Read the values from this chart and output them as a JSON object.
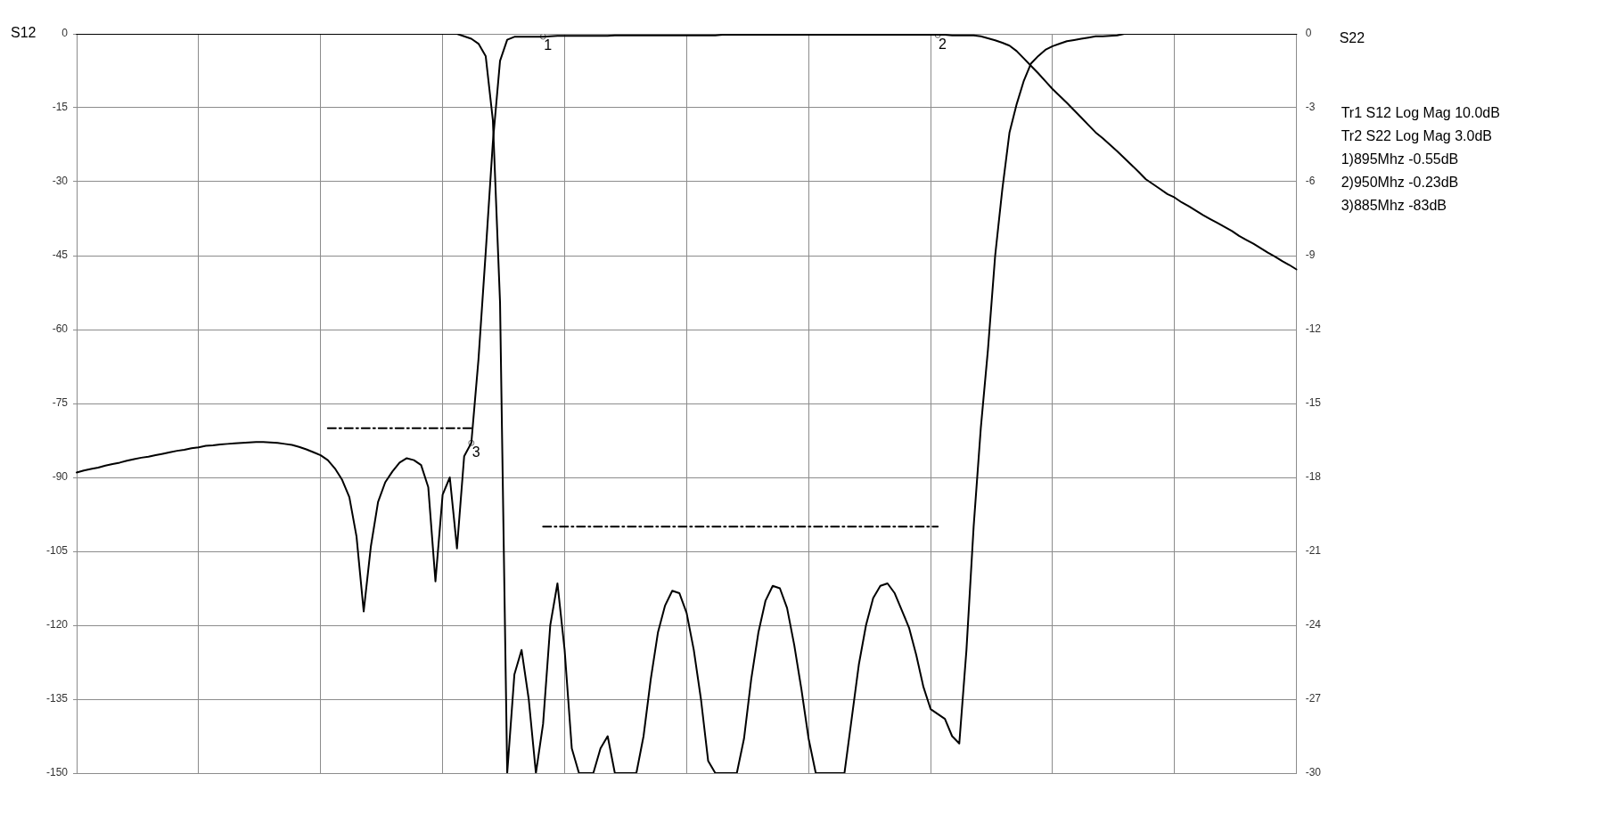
{
  "chart_data": {
    "type": "line",
    "ylabel": "S12",
    "y2label": "S22",
    "categories": [
      null,
      null,
      null,
      null,
      null,
      null,
      null,
      null,
      null,
      null,
      null,
      null,
      null,
      null,
      null,
      null,
      null,
      null,
      null,
      null,
      null,
      null,
      null,
      null,
      null,
      null,
      null,
      null,
      null,
      null,
      null,
      null,
      null,
      null,
      null,
      null,
      null,
      null,
      null,
      null,
      null,
      null,
      null,
      null,
      null,
      null,
      null,
      null,
      null,
      null,
      null,
      null,
      null,
      null,
      null,
      null,
      null,
      null,
      null,
      null,
      null,
      null,
      null,
      null,
      null,
      null,
      null,
      null,
      null,
      null,
      null,
      null,
      null,
      null,
      null,
      null,
      null,
      null,
      null,
      null,
      null,
      null,
      null,
      null,
      null,
      null,
      null,
      null,
      null,
      null,
      null,
      null,
      null,
      null,
      null,
      null,
      null,
      null,
      null,
      null,
      null,
      null,
      null,
      null,
      null,
      null,
      null,
      null,
      null,
      null,
      null,
      null,
      null,
      null,
      null,
      null,
      null,
      null,
      null,
      null,
      null,
      null,
      null,
      null,
      null,
      null,
      null,
      null,
      null,
      null,
      null,
      null,
      null,
      null,
      null,
      null,
      null,
      null,
      null,
      null,
      null,
      null,
      null,
      null,
      null,
      null,
      null,
      null,
      null,
      null,
      null,
      null,
      null,
      null,
      null,
      null,
      null,
      null,
      null,
      null,
      null,
      null,
      null,
      null,
      null,
      null,
      null,
      null,
      null,
      null,
      null
    ],
    "ylim": [
      -150,
      0
    ],
    "yticks": [
      -150,
      -135,
      -120,
      -105,
      -90,
      -75,
      -60,
      -45,
      -30,
      -15,
      0
    ],
    "y2lim": [
      -30,
      0
    ],
    "y2ticks": [
      -30,
      -27,
      -24,
      -21,
      -18,
      -15,
      -12,
      -9,
      -6,
      -3,
      0
    ],
    "tick_labels": "y",
    "grid": true,
    "legend": false,
    "marker": "none",
    "line_style": "solid",
    "series": [
      {
        "color": "#000000",
        "values": [
          -89,
          -88.6,
          -88.3,
          -88,
          -87.6,
          -87.3,
          -87,
          -86.6,
          -86.3,
          -86,
          -85.8,
          -85.5,
          -85.2,
          -84.9,
          -84.6,
          -84.4,
          -84.1,
          -83.9,
          -83.6,
          -83.5,
          -83.3,
          -83.2,
          -83.1,
          -83,
          -82.9,
          -82.8,
          -82.8,
          -82.9,
          -83,
          -83.2,
          -83.4,
          -83.8,
          -84.3,
          -84.9,
          -85.5,
          -86.5,
          -88.2,
          -90.5,
          -94,
          -102,
          -117.2,
          -104,
          -95,
          -91,
          -88.8,
          -87,
          -86.1,
          -86.5,
          -87.5,
          -92,
          -111.1,
          -93.5,
          -90,
          -104.4,
          -85.7,
          -83,
          -66,
          -44.4,
          -22,
          -5.5,
          -1.2,
          -0.6,
          -0.6,
          -0.6,
          -0.6,
          -0.6,
          -0.5,
          -0.4,
          -0.4,
          -0.4,
          -0.4,
          -0.4,
          -0.4,
          -0.4,
          -0.4,
          -0.3,
          -0.3,
          -0.3,
          -0.3,
          -0.3,
          -0.3,
          -0.3,
          -0.3,
          -0.3,
          -0.3,
          -0.3,
          -0.3,
          -0.3,
          -0.3,
          -0.3,
          -0.2,
          -0.2,
          -0.2,
          -0.2,
          -0.2,
          -0.2,
          -0.2,
          -0.2,
          -0.2,
          -0.2,
          -0.2,
          -0.2,
          -0.2,
          -0.2,
          -0.2,
          -0.2,
          -0.2,
          -0.2,
          -0.2,
          -0.2,
          -0.2,
          -0.2,
          -0.2,
          -0.2,
          -0.2,
          -0.2,
          -0.2,
          -0.2,
          -0.2,
          -0.2,
          -0.2,
          -0.2,
          -0.3,
          -0.3,
          -0.3,
          -0.3,
          -0.5,
          -0.9,
          -1.3,
          -1.8,
          -2.4,
          -3.5,
          -5,
          -6.5,
          -8,
          -9.6,
          -11.2,
          -12.6,
          -14,
          -15.5,
          -17,
          -18.5,
          -20,
          -21.2,
          -22.5,
          -23.8,
          -25.2,
          -26.6,
          -28,
          -29.5,
          -30.5,
          -31.5,
          -32.5,
          -33.2,
          -34.2,
          -35,
          -35.9,
          -36.8,
          -37.6,
          -38.4,
          -39.2,
          -40,
          -41,
          -41.8,
          -42.6,
          -43.5,
          -44.4,
          -45.2,
          -46.1,
          -46.9,
          -47.8
        ]
      },
      {
        "color": "#000000",
        "axis": "y2",
        "values": [
          0,
          0,
          0,
          0,
          0,
          0,
          0,
          0,
          0,
          0,
          0,
          0,
          0,
          0,
          0,
          0,
          0,
          0,
          0,
          0,
          0,
          0,
          0,
          0,
          0,
          0,
          0,
          0,
          0,
          0,
          0,
          0,
          0,
          0,
          0,
          0,
          0,
          0,
          0,
          0,
          0,
          0,
          0,
          0,
          0,
          0,
          0,
          0,
          0,
          0,
          0,
          0,
          0,
          0,
          -0.1,
          -0.2,
          -0.4,
          -0.9,
          -3.5,
          -10.9,
          -30,
          -26,
          -25,
          -27,
          -30,
          -28,
          -24,
          -22.3,
          -25,
          -29,
          -30,
          -30,
          -30,
          -29,
          -28.5,
          -30,
          -30,
          -30,
          -30,
          -28.5,
          -26.2,
          -24.3,
          -23.2,
          -22.6,
          -22.7,
          -23.5,
          -25,
          -27,
          -29.5,
          -30,
          -30,
          -30,
          -30,
          -28.6,
          -26.2,
          -24.3,
          -23,
          -22.4,
          -22.5,
          -23.3,
          -24.8,
          -26.6,
          -28.6,
          -30,
          -30,
          -30,
          -30,
          -30,
          -27.8,
          -25.6,
          -24,
          -22.9,
          -22.4,
          -22.3,
          -22.7,
          -23.4,
          -24.1,
          -25.2,
          -26.5,
          -27.4,
          -27.6,
          -27.8,
          -28.5,
          -28.8,
          -25,
          -20,
          -16,
          -12.8,
          -9,
          -6.3,
          -4,
          -2.85,
          -1.9,
          -1.2,
          -0.9,
          -0.65,
          -0.5,
          -0.4,
          -0.3,
          -0.25,
          -0.2,
          -0.15,
          -0.1,
          -0.1,
          -0.08,
          -0.06,
          0,
          0,
          0,
          0,
          0,
          0,
          0,
          0,
          0,
          0,
          0,
          0,
          0,
          0,
          0,
          0,
          0,
          0,
          0,
          0,
          0,
          0,
          0,
          0,
          0
        ]
      },
      {
        "color": "#000000",
        "line_style": "dashed",
        "values": [
          null,
          null,
          null,
          null,
          null,
          null,
          null,
          null,
          null,
          null,
          null,
          null,
          null,
          null,
          null,
          null,
          null,
          null,
          null,
          null,
          null,
          null,
          null,
          null,
          null,
          null,
          null,
          null,
          null,
          null,
          null,
          null,
          null,
          null,
          null,
          -80,
          -80,
          -80,
          -80,
          -80,
          -80,
          -80,
          -80,
          -80,
          -80,
          -80,
          -80,
          -80,
          -80,
          -80,
          -80,
          -80,
          -80,
          -80,
          -80,
          -80,
          null,
          null,
          null,
          null,
          null,
          null,
          null,
          null,
          null,
          null,
          null,
          null,
          null,
          null,
          null,
          null,
          null,
          null,
          null,
          null,
          null,
          null,
          null,
          null,
          null,
          null,
          null,
          null,
          null,
          null,
          null,
          null,
          null,
          null,
          null,
          null,
          null,
          null,
          null,
          null,
          null,
          null,
          null,
          null,
          null,
          null,
          null,
          null,
          null,
          null,
          null,
          null,
          null,
          null,
          null,
          null,
          null,
          null,
          null,
          null,
          null,
          null,
          null,
          null,
          null,
          null,
          null,
          null,
          null,
          null,
          null,
          null,
          null,
          null,
          null,
          null,
          null,
          null,
          null,
          null,
          null,
          null,
          null,
          null,
          null,
          null,
          null,
          null,
          null,
          null,
          null,
          null,
          null,
          null,
          null,
          null,
          null,
          null,
          null,
          null,
          null,
          null,
          null,
          null,
          null,
          null,
          null,
          null,
          null,
          null,
          null,
          null,
          null,
          null,
          null
        ]
      },
      {
        "color": "#000000",
        "line_style": "dashed",
        "axis": "y2",
        "values": [
          null,
          null,
          null,
          null,
          null,
          null,
          null,
          null,
          null,
          null,
          null,
          null,
          null,
          null,
          null,
          null,
          null,
          null,
          null,
          null,
          null,
          null,
          null,
          null,
          null,
          null,
          null,
          null,
          null,
          null,
          null,
          null,
          null,
          null,
          null,
          null,
          null,
          null,
          null,
          null,
          null,
          null,
          null,
          null,
          null,
          null,
          null,
          null,
          null,
          null,
          null,
          null,
          null,
          null,
          null,
          null,
          null,
          null,
          null,
          null,
          null,
          null,
          null,
          null,
          null,
          -20,
          -20,
          -20,
          -20,
          -20,
          -20,
          -20,
          -20,
          -20,
          -20,
          -20,
          -20,
          -20,
          -20,
          -20,
          -20,
          -20,
          -20,
          -20,
          -20,
          -20,
          -20,
          -20,
          -20,
          -20,
          -20,
          -20,
          -20,
          -20,
          -20,
          -20,
          -20,
          -20,
          -20,
          -20,
          -20,
          -20,
          -20,
          -20,
          -20,
          -20,
          -20,
          -20,
          -20,
          -20,
          -20,
          -20,
          -20,
          -20,
          -20,
          -20,
          -20,
          -20,
          -20,
          -20,
          -20,
          null,
          null,
          null,
          null,
          null,
          null,
          null,
          null,
          null,
          null,
          null,
          null,
          null,
          null,
          null,
          null,
          null,
          null,
          null,
          null,
          null,
          null,
          null,
          null,
          null,
          null,
          null,
          null,
          null,
          null,
          null,
          null,
          null,
          null,
          null,
          null,
          null,
          null,
          null,
          null,
          null,
          null,
          null,
          null,
          null,
          null,
          null,
          null,
          null,
          null
        ]
      },
      {
        "name": "3",
        "type": "scatter",
        "color": "#666666",
        "marker": "circle",
        "values": [
          null,
          null,
          null,
          null,
          null,
          null,
          null,
          null,
          null,
          null,
          null,
          null,
          null,
          null,
          null,
          null,
          null,
          null,
          null,
          null,
          null,
          null,
          null,
          null,
          null,
          null,
          null,
          null,
          null,
          null,
          null,
          null,
          null,
          null,
          null,
          null,
          null,
          null,
          null,
          null,
          null,
          null,
          null,
          null,
          null,
          null,
          null,
          null,
          null,
          null,
          null,
          null,
          null,
          null,
          null,
          -83,
          null,
          null,
          null,
          null,
          null,
          null,
          null,
          null,
          null,
          null,
          null,
          null,
          null,
          null,
          null,
          null,
          null,
          null,
          null,
          null,
          null,
          null,
          null,
          null,
          null,
          null,
          null,
          null,
          null,
          null,
          null,
          null,
          null,
          null,
          null,
          null,
          null,
          null,
          null,
          null,
          null,
          null,
          null,
          null,
          null,
          null,
          null,
          null,
          null,
          null,
          null,
          null,
          null,
          null,
          null,
          null,
          null,
          null,
          null,
          null,
          null,
          null,
          null,
          null,
          null,
          null,
          null,
          null,
          null,
          null,
          null,
          null,
          null,
          null,
          null,
          null,
          null,
          null,
          null,
          null,
          null,
          null,
          null,
          null,
          null,
          null,
          null,
          null,
          null,
          null,
          null,
          null,
          null,
          null,
          null,
          null,
          null,
          null,
          null,
          null,
          null,
          null,
          null,
          null,
          null,
          null,
          null,
          null,
          null,
          null,
          null,
          null,
          null,
          null,
          null
        ]
      },
      {
        "name": "1",
        "type": "scatter",
        "color": "#666666",
        "marker": "circle",
        "values": [
          null,
          null,
          null,
          null,
          null,
          null,
          null,
          null,
          null,
          null,
          null,
          null,
          null,
          null,
          null,
          null,
          null,
          null,
          null,
          null,
          null,
          null,
          null,
          null,
          null,
          null,
          null,
          null,
          null,
          null,
          null,
          null,
          null,
          null,
          null,
          null,
          null,
          null,
          null,
          null,
          null,
          null,
          null,
          null,
          null,
          null,
          null,
          null,
          null,
          null,
          null,
          null,
          null,
          null,
          null,
          null,
          null,
          null,
          null,
          null,
          null,
          null,
          null,
          null,
          null,
          -0.55,
          null,
          null,
          null,
          null,
          null,
          null,
          null,
          null,
          null,
          null,
          null,
          null,
          null,
          null,
          null,
          null,
          null,
          null,
          null,
          null,
          null,
          null,
          null,
          null,
          null,
          null,
          null,
          null,
          null,
          null,
          null,
          null,
          null,
          null,
          null,
          null,
          null,
          null,
          null,
          null,
          null,
          null,
          null,
          null,
          null,
          null,
          null,
          null,
          null,
          null,
          null,
          null,
          null,
          null,
          null,
          null,
          null,
          null,
          null,
          null,
          null,
          null,
          null,
          null,
          null,
          null,
          null,
          null,
          null,
          null,
          null,
          null,
          null,
          null,
          null,
          null,
          null,
          null,
          null,
          null,
          null,
          null,
          null,
          null,
          null,
          null,
          null,
          null,
          null,
          null,
          null,
          null,
          null,
          null,
          null,
          null,
          null,
          null,
          null,
          null,
          null,
          null,
          null,
          null,
          null
        ]
      },
      {
        "name": "2",
        "type": "scatter",
        "color": "#666666",
        "marker": "circle",
        "values": [
          null,
          null,
          null,
          null,
          null,
          null,
          null,
          null,
          null,
          null,
          null,
          null,
          null,
          null,
          null,
          null,
          null,
          null,
          null,
          null,
          null,
          null,
          null,
          null,
          null,
          null,
          null,
          null,
          null,
          null,
          null,
          null,
          null,
          null,
          null,
          null,
          null,
          null,
          null,
          null,
          null,
          null,
          null,
          null,
          null,
          null,
          null,
          null,
          null,
          null,
          null,
          null,
          null,
          null,
          null,
          null,
          null,
          null,
          null,
          null,
          null,
          null,
          null,
          null,
          null,
          null,
          null,
          null,
          null,
          null,
          null,
          null,
          null,
          null,
          null,
          null,
          null,
          null,
          null,
          null,
          null,
          null,
          null,
          null,
          null,
          null,
          null,
          null,
          null,
          null,
          null,
          null,
          null,
          null,
          null,
          null,
          null,
          null,
          null,
          null,
          null,
          null,
          null,
          null,
          null,
          null,
          null,
          null,
          null,
          null,
          null,
          null,
          null,
          null,
          null,
          null,
          null,
          null,
          null,
          null,
          -0.23,
          null,
          null,
          null,
          null,
          null,
          null,
          null,
          null,
          null,
          null,
          null,
          null,
          null,
          null,
          null,
          null,
          null,
          null,
          null,
          null,
          null,
          null,
          null,
          null,
          null,
          null,
          null,
          null,
          null,
          null,
          null,
          null,
          null,
          null,
          null,
          null,
          null,
          null,
          null,
          null,
          null,
          null,
          null,
          null,
          null,
          null,
          null,
          null,
          null,
          null
        ]
      }
    ],
    "annotations": [
      "Tr1 S12 Log Mag 10.0dB",
      "Tr2 S22 Log Mag 3.0dB",
      "1)895Mhz -0.55dB",
      "2)950Mhz -0.23dB",
      "3)885Mhz -83dB"
    ]
  }
}
